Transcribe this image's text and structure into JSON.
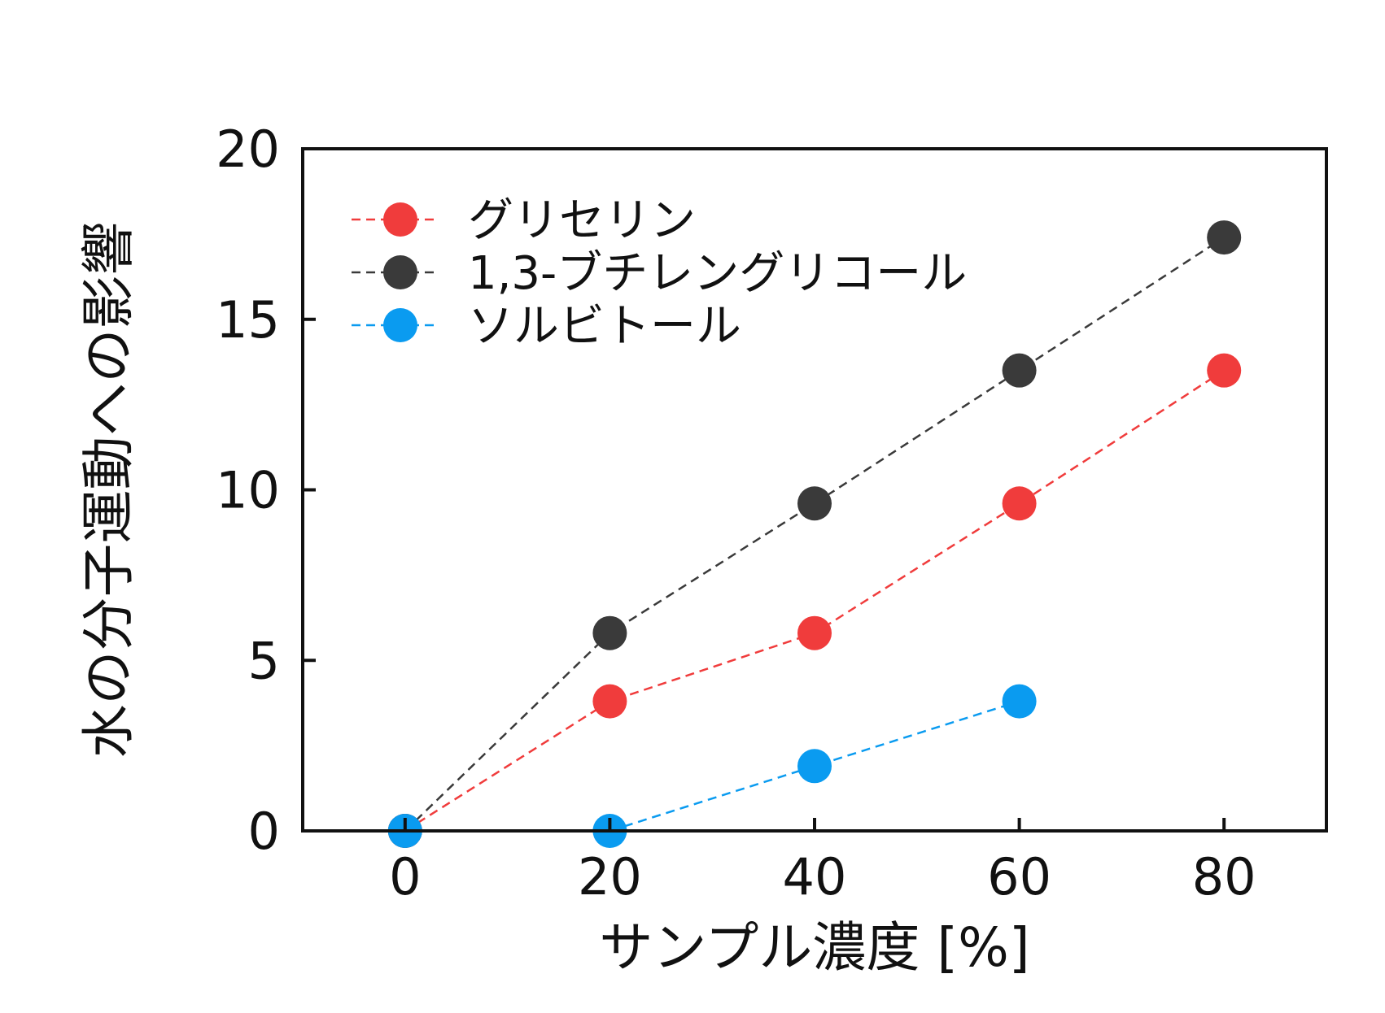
{
  "chart_data": {
    "type": "line",
    "xlabel": "サンプル濃度 [%]",
    "ylabel": "水の分子運動への影響",
    "x": [
      0,
      20,
      40,
      60,
      80
    ],
    "xlim": [
      -10,
      90
    ],
    "ylim": [
      0,
      20
    ],
    "xticks": [
      0,
      20,
      40,
      60,
      80
    ],
    "yticks": [
      0,
      5,
      10,
      15,
      20
    ],
    "grid": false,
    "legend_position": "top-left",
    "marker": "circle",
    "line_style": "dashed",
    "series": [
      {
        "name": "グリセリン",
        "color": "#f03c3c",
        "x": [
          0,
          20,
          40,
          60,
          80
        ],
        "values": [
          0,
          3.8,
          5.8,
          9.6,
          13.5
        ]
      },
      {
        "name": "1,3-ブチレングリコール",
        "color": "#3a3a3a",
        "x": [
          0,
          20,
          40,
          60,
          80
        ],
        "values": [
          0,
          5.8,
          9.6,
          13.5,
          17.4
        ]
      },
      {
        "name": "ソルビトール",
        "color": "#0a9bf0",
        "x": [
          0,
          20,
          40,
          60
        ],
        "values": [
          0,
          0,
          1.9,
          3.8
        ]
      }
    ]
  }
}
